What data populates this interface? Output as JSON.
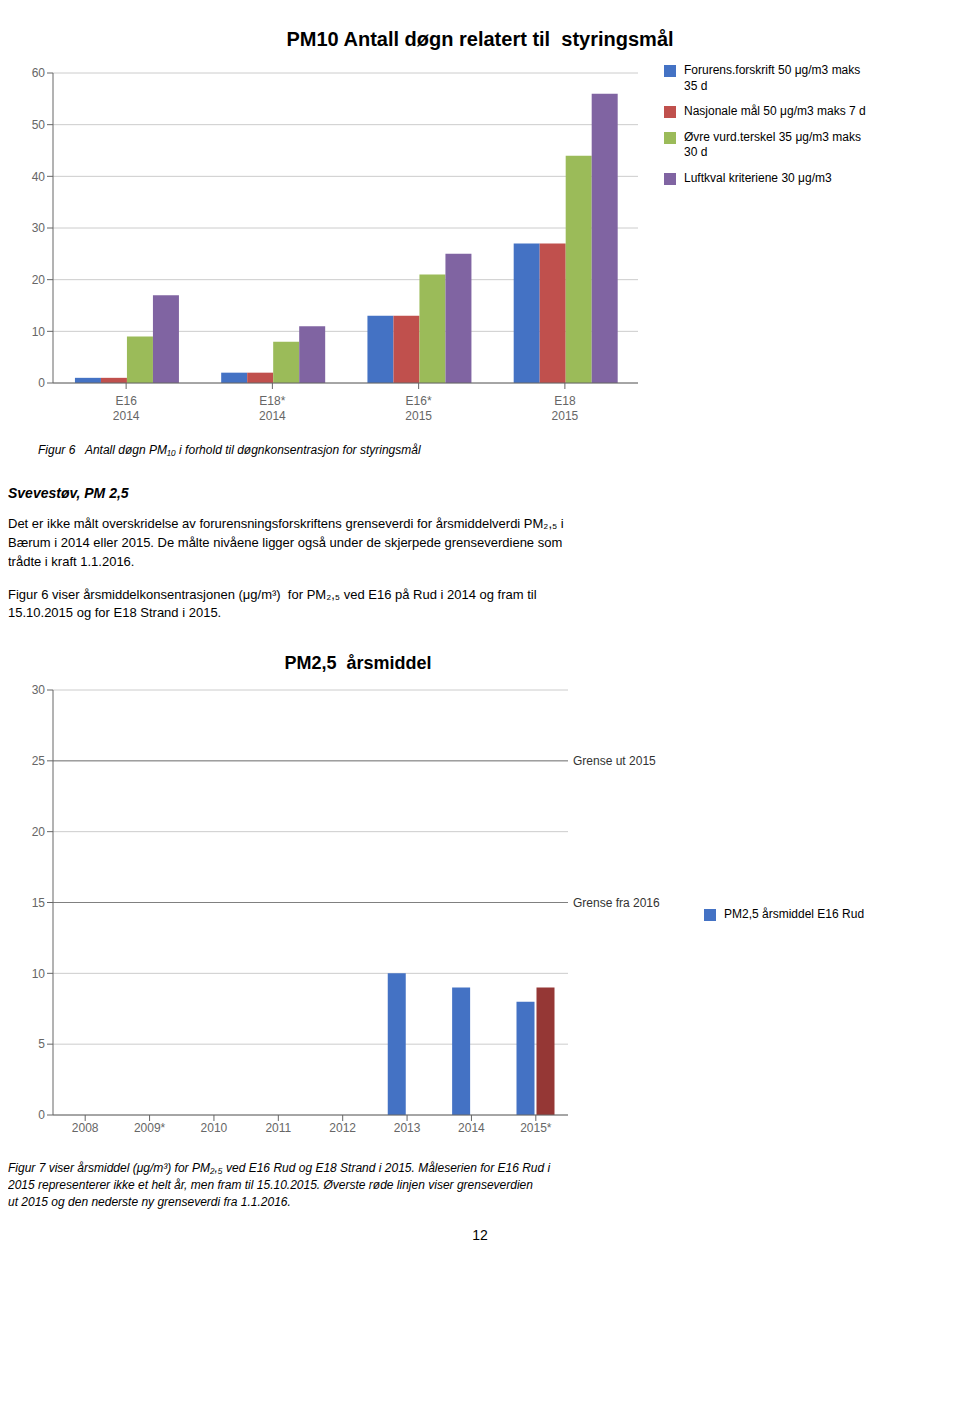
{
  "chart_data": [
    {
      "type": "bar",
      "title": "PM10 Antall døgn relatert til  styringsmål",
      "categories": [
        "E16\n2014",
        "E18*\n2014",
        "E16*\n2015",
        "E18\n2015"
      ],
      "series": [
        {
          "name": "Forurens.forskrift 50 μg/m3 maks\n35 d",
          "color": "#4472C4",
          "values": [
            1,
            2,
            13,
            27
          ]
        },
        {
          "name": "Nasjonale mål 50 μg/m3 maks 7 d",
          "color": "#C0504D",
          "values": [
            1,
            2,
            13,
            27
          ]
        },
        {
          "name": "Øvre vurd.terskel 35 μg/m3 maks\n30 d",
          "color": "#9BBB59",
          "values": [
            9,
            8,
            21,
            44
          ]
        },
        {
          "name": "Luftkval kriteriene 30 μg/m3",
          "color": "#8064A2",
          "values": [
            17,
            11,
            25,
            56
          ]
        }
      ],
      "ylim": [
        0,
        60
      ],
      "yticks": [
        0,
        10,
        20,
        30,
        40,
        50,
        60
      ],
      "grid": true,
      "legend": "right",
      "caption": "Figur 6   Antall døgn PM₁₀ i forhold til døgnkonsentrasjon for styringsmål"
    },
    {
      "type": "bar",
      "title": "PM2,5  årsmiddel",
      "categories": [
        "2008",
        "2009*",
        "2010",
        "2011",
        "2012",
        "2013",
        "2014",
        "2015*"
      ],
      "series": [
        {
          "name": "PM2,5 årsmiddel E16 Rud",
          "color": "#4472C4",
          "values": [
            0,
            0,
            0,
            0,
            0,
            10,
            9,
            8
          ]
        },
        {
          "color": "#953735",
          "values": [
            0,
            0,
            0,
            0,
            0,
            0,
            0,
            9
          ]
        }
      ],
      "ylim": [
        0,
        30
      ],
      "yticks": [
        0,
        5,
        10,
        15,
        20,
        25,
        30
      ],
      "grid": true,
      "legend": "right",
      "annotations": [
        {
          "text": "Grense ut 2015",
          "y": 25
        },
        {
          "text": "Grense fra 2016",
          "y": 15
        }
      ],
      "caption": "Figur 7 viser årsmiddel (μg/m³) for PM₂,₅ ved E16 Rud og E18 Strand i 2015. Måleserien for E16 Rud i\n2015 representerer ikke et helt år, men fram til 15.10.2015. Øverste røde linjen viser grenseverdien\nut 2015 og den nederste ny grenseverdi fra 1.1.2016."
    }
  ],
  "heading": "Svevestøv, PM 2,5",
  "paragraphs": [
    "Det er ikke målt overskridelse av forurensningsforskriftens grenseverdi for årsmiddelverdi PM₂,₅ i\nBærum i 2014 eller 2015. De målte nivåene ligger også under de skjerpede grenseverdiene som\ntrådte i kraft 1.1.2016.",
    "Figur 6 viser årsmiddelkonsentrasjonen (μg/m³)  for PM₂,₅ ved E16 på Rud i 2014 og fram til\n15.10.2015 og for E18 Strand i 2015."
  ],
  "page_number": "12"
}
